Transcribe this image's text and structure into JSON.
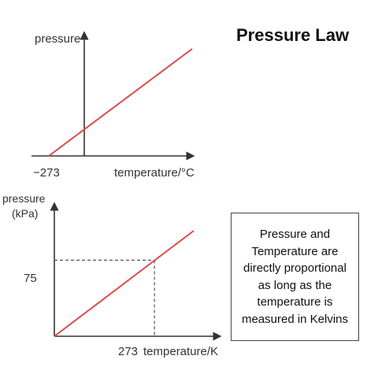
{
  "title": "Pressure Law",
  "note_lines": [
    "Pressure and",
    "Temperature are",
    "directly proportional",
    "as long as the",
    "temperature is",
    "measured in Kelvins"
  ],
  "colors": {
    "line": "#e0474c",
    "axis": "#333333",
    "guide": "#555555"
  },
  "chart_data": [
    {
      "type": "line",
      "title": "",
      "ylabel": "pressure",
      "xlabel": "temperature/°C",
      "x_tick_labels": [
        "−273"
      ],
      "series": [
        {
          "x": [
            -273,
            120
          ],
          "y": [
            0,
            1
          ]
        }
      ]
    },
    {
      "type": "line",
      "title": "",
      "ylabel": [
        "pressure",
        "(kPa)"
      ],
      "xlabel": "temperature/K",
      "x_tick_labels": [
        "273"
      ],
      "y_tick_labels": [
        "75"
      ],
      "xlim": [
        0,
        380
      ],
      "ylim": [
        0,
        104
      ],
      "series": [
        {
          "x": [
            0,
            380
          ],
          "y": [
            0,
            104
          ]
        }
      ],
      "highlight_point": {
        "x": 273,
        "y": 75
      }
    }
  ]
}
